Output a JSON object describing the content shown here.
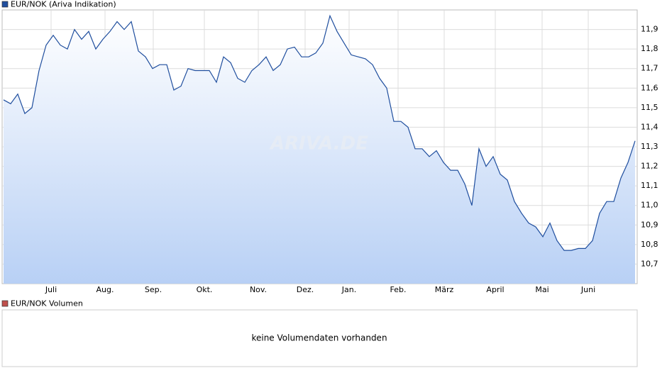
{
  "chart_data": {
    "type": "line",
    "series": [
      {
        "name": "EUR/NOK (Ariva Indikation)",
        "color": "#1f4e9e",
        "values": [
          11.54,
          11.52,
          11.57,
          11.47,
          11.5,
          11.69,
          11.82,
          11.87,
          11.82,
          11.8,
          11.9,
          11.85,
          11.89,
          11.8,
          11.85,
          11.89,
          11.94,
          11.9,
          11.94,
          11.79,
          11.76,
          11.7,
          11.72,
          11.72,
          11.59,
          11.61,
          11.7,
          11.69,
          11.69,
          11.69,
          11.63,
          11.76,
          11.73,
          11.65,
          11.63,
          11.69,
          11.72,
          11.76,
          11.69,
          11.72,
          11.8,
          11.81,
          11.76,
          11.76,
          11.78,
          11.83,
          11.97,
          11.89,
          11.83,
          11.77,
          11.76,
          11.75,
          11.72,
          11.65,
          11.6,
          11.43,
          11.43,
          11.4,
          11.29,
          11.29,
          11.25,
          11.28,
          11.22,
          11.18,
          11.18,
          11.11,
          11.0,
          11.29,
          11.2,
          11.25,
          11.16,
          11.13,
          11.02,
          10.96,
          10.91,
          10.89,
          10.84,
          10.91,
          10.82,
          10.77,
          10.77,
          10.78,
          10.78,
          10.82,
          10.96,
          11.02,
          11.02,
          11.14,
          11.22,
          11.33
        ]
      }
    ],
    "xlim": [
      -0.2,
      89.3
    ],
    "xticks": [
      {
        "value": 6.7,
        "label": "Juli"
      },
      {
        "value": 14.3,
        "label": "Aug."
      },
      {
        "value": 21.1,
        "label": "Sep."
      },
      {
        "value": 28.3,
        "label": "Okt."
      },
      {
        "value": 35.9,
        "label": "Nov."
      },
      {
        "value": 42.5,
        "label": "Dez."
      },
      {
        "value": 48.7,
        "label": "Jan."
      },
      {
        "value": 55.6,
        "label": "Feb."
      },
      {
        "value": 62.1,
        "label": "März"
      },
      {
        "value": 69.3,
        "label": "April"
      },
      {
        "value": 75.9,
        "label": "Mai"
      },
      {
        "value": 82.4,
        "label": "Juni"
      }
    ],
    "ylim": [
      10.6,
      12.0
    ],
    "yticks": [
      {
        "value": 11.9,
        "label": "11,9"
      },
      {
        "value": 11.8,
        "label": "11,8"
      },
      {
        "value": 11.7,
        "label": "11,7"
      },
      {
        "value": 11.6,
        "label": "11,6"
      },
      {
        "value": 11.5,
        "label": "11,5"
      },
      {
        "value": 11.4,
        "label": "11,4"
      },
      {
        "value": 11.3,
        "label": "11,3"
      },
      {
        "value": 11.2,
        "label": "11,2"
      },
      {
        "value": 11.1,
        "label": "11,1"
      },
      {
        "value": 11.0,
        "label": "11,0"
      },
      {
        "value": 10.9,
        "label": "10,9"
      },
      {
        "value": 10.8,
        "label": "10,8"
      },
      {
        "value": 10.7,
        "label": "10,7"
      }
    ],
    "grid": true,
    "watermark": "ARIVA.DE"
  },
  "volume_panel": {
    "legend": "EUR/NOK Volumen",
    "color": "#c0504d",
    "message": "keine Volumendaten vorhanden"
  }
}
